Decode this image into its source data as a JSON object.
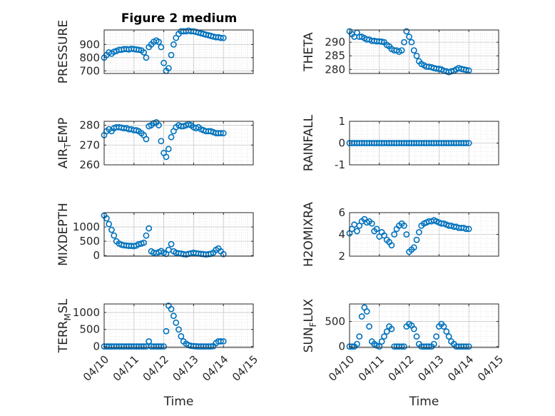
{
  "figure": {
    "title": "Figure 2 medium",
    "marker_color": "#0072bd"
  },
  "chart_data": [
    {
      "type": "scatter",
      "name": "pressure",
      "title": "Figure 2 medium",
      "xlabel": "",
      "ylabel": "PRESSURE",
      "xlim": [
        0,
        5
      ],
      "ylim": [
        680,
        1010
      ],
      "yticks": [
        700,
        800,
        900
      ],
      "yticklabels": [
        "700",
        "800",
        "900"
      ],
      "xticks": [
        0,
        1,
        2,
        3,
        4,
        5
      ],
      "xticklabels": [],
      "grid": true,
      "minor_grid": true,
      "x": [
        0.0,
        0.08,
        0.16,
        0.25,
        0.33,
        0.41,
        0.5,
        0.58,
        0.66,
        0.75,
        0.83,
        0.91,
        1.0,
        1.08,
        1.16,
        1.25,
        1.33,
        1.41,
        1.5,
        1.58,
        1.66,
        1.75,
        1.83,
        1.91,
        2.0,
        2.08,
        2.16,
        2.25,
        2.33,
        2.41,
        2.5,
        2.58,
        2.66,
        2.75,
        2.83,
        2.91,
        3.0,
        3.08,
        3.16,
        3.25,
        3.33,
        3.41,
        3.5,
        3.58,
        3.66,
        3.75,
        3.83,
        3.91,
        4.0
      ],
      "y": [
        800,
        820,
        840,
        830,
        845,
        850,
        860,
        860,
        865,
        865,
        862,
        868,
        865,
        862,
        860,
        855,
        840,
        800,
        880,
        900,
        920,
        930,
        920,
        880,
        760,
        700,
        720,
        820,
        900,
        950,
        980,
        1000,
        1000,
        1000,
        1005,
        1000,
        1000,
        995,
        990,
        985,
        980,
        975,
        970,
        965,
        960,
        955,
        955,
        950,
        950
      ]
    },
    {
      "type": "scatter",
      "name": "theta",
      "xlabel": "",
      "ylabel": "THETA",
      "xlim": [
        0,
        5
      ],
      "ylim": [
        278.5,
        294.5
      ],
      "yticks": [
        280,
        285,
        290
      ],
      "yticklabels": [
        "280",
        "285",
        "290"
      ],
      "xticks": [
        0,
        1,
        2,
        3,
        4,
        5
      ],
      "xticklabels": [],
      "grid": true,
      "minor_grid": true,
      "x": [
        0.0,
        0.08,
        0.16,
        0.25,
        0.33,
        0.41,
        0.5,
        0.58,
        0.66,
        0.75,
        0.83,
        0.91,
        1.0,
        1.08,
        1.16,
        1.25,
        1.33,
        1.41,
        1.5,
        1.58,
        1.66,
        1.75,
        1.83,
        1.91,
        2.0,
        2.08,
        2.16,
        2.25,
        2.33,
        2.41,
        2.5,
        2.58,
        2.66,
        2.75,
        2.83,
        2.91,
        3.0,
        3.08,
        3.16,
        3.25,
        3.33,
        3.41,
        3.5,
        3.58,
        3.66,
        3.75,
        3.83,
        3.91,
        4.0
      ],
      "y": [
        294,
        293,
        292,
        293.5,
        292,
        292,
        291.5,
        291,
        291,
        290.5,
        290.5,
        290.3,
        290.3,
        290.2,
        290,
        289,
        288.5,
        287.5,
        287,
        287,
        286.5,
        287,
        290,
        294,
        292,
        290,
        287,
        285,
        283,
        282,
        281.5,
        281,
        281,
        280.8,
        280.5,
        280.3,
        280.2,
        280,
        279.5,
        279.3,
        279,
        279.3,
        279.5,
        280,
        280.5,
        280.2,
        280,
        279.8,
        279.6
      ]
    },
    {
      "type": "scatter",
      "name": "air-temp",
      "xlabel": "",
      "ylabel": "AIR_TEMP",
      "ylabel_main": "AIR",
      "ylabel_sub": "T",
      "ylabel_rest": "EMP",
      "xlim": [
        0,
        5
      ],
      "ylim": [
        260,
        282
      ],
      "yticks": [
        260,
        270,
        280
      ],
      "yticklabels": [
        "260",
        "270",
        "280"
      ],
      "xticks": [
        0,
        1,
        2,
        3,
        4,
        5
      ],
      "xticklabels": [],
      "grid": true,
      "minor_grid": true,
      "x": [
        0.0,
        0.08,
        0.16,
        0.25,
        0.33,
        0.41,
        0.5,
        0.58,
        0.66,
        0.75,
        0.83,
        0.91,
        1.0,
        1.08,
        1.16,
        1.25,
        1.33,
        1.41,
        1.5,
        1.58,
        1.66,
        1.75,
        1.83,
        1.91,
        2.0,
        2.08,
        2.16,
        2.25,
        2.33,
        2.41,
        2.5,
        2.58,
        2.66,
        2.75,
        2.83,
        2.91,
        3.0,
        3.08,
        3.16,
        3.25,
        3.33,
        3.41,
        3.5,
        3.58,
        3.66,
        3.75,
        3.83,
        3.91,
        4.0
      ],
      "y": [
        275,
        277,
        278,
        277,
        278.5,
        279,
        279,
        278.8,
        278.5,
        278.5,
        278,
        278,
        277.5,
        277.5,
        277,
        276,
        275,
        273,
        279.5,
        280,
        281,
        281.5,
        280,
        272,
        266,
        264,
        268,
        274,
        277,
        279,
        280,
        279.5,
        279.5,
        280,
        280.5,
        280,
        279,
        278.5,
        279,
        278,
        277.5,
        277,
        277,
        277,
        276.5,
        276,
        276,
        276,
        276
      ]
    },
    {
      "type": "scatter",
      "name": "rainfall",
      "xlabel": "",
      "ylabel": "RAINFALL",
      "xlim": [
        0,
        5
      ],
      "ylim": [
        -1,
        1
      ],
      "yticks": [
        -1,
        0,
        1
      ],
      "yticklabels": [
        "-1",
        "0",
        "1"
      ],
      "xticks": [
        0,
        1,
        2,
        3,
        4,
        5
      ],
      "xticklabels": [],
      "grid": true,
      "minor_grid": true,
      "x": [
        0.0,
        0.08,
        0.16,
        0.25,
        0.33,
        0.41,
        0.5,
        0.58,
        0.66,
        0.75,
        0.83,
        0.91,
        1.0,
        1.08,
        1.16,
        1.25,
        1.33,
        1.41,
        1.5,
        1.58,
        1.66,
        1.75,
        1.83,
        1.91,
        2.0,
        2.08,
        2.16,
        2.25,
        2.33,
        2.41,
        2.5,
        2.58,
        2.66,
        2.75,
        2.83,
        2.91,
        3.0,
        3.08,
        3.16,
        3.25,
        3.33,
        3.41,
        3.5,
        3.58,
        3.66,
        3.75,
        3.83,
        3.91,
        4.0
      ],
      "y": [
        0,
        0,
        0,
        0,
        0,
        0,
        0,
        0,
        0,
        0,
        0,
        0,
        0,
        0,
        0,
        0,
        0,
        0,
        0,
        0,
        0,
        0,
        0,
        0,
        0,
        0,
        0,
        0,
        0,
        0,
        0,
        0,
        0,
        0,
        0,
        0,
        0,
        0,
        0,
        0,
        0,
        0,
        0,
        0,
        0,
        0,
        0,
        0,
        0
      ]
    },
    {
      "type": "scatter",
      "name": "mixdepth",
      "xlabel": "",
      "ylabel": "MIXDEPTH",
      "xlim": [
        0,
        5
      ],
      "ylim": [
        -20,
        1500
      ],
      "yticks": [
        0,
        500,
        1000
      ],
      "yticklabels": [
        "0",
        "500",
        "1000"
      ],
      "xticks": [
        0,
        1,
        2,
        3,
        4,
        5
      ],
      "xticklabels": [],
      "grid": true,
      "minor_grid": true,
      "x": [
        0.0,
        0.08,
        0.16,
        0.25,
        0.33,
        0.41,
        0.5,
        0.58,
        0.66,
        0.75,
        0.83,
        0.91,
        1.0,
        1.08,
        1.16,
        1.25,
        1.33,
        1.41,
        1.5,
        1.58,
        1.66,
        1.75,
        1.83,
        1.91,
        2.0,
        2.08,
        2.16,
        2.25,
        2.33,
        2.41,
        2.5,
        2.58,
        2.66,
        2.75,
        2.83,
        2.91,
        3.0,
        3.08,
        3.16,
        3.25,
        3.33,
        3.41,
        3.5,
        3.58,
        3.66,
        3.75,
        3.83,
        3.91,
        4.0
      ],
      "y": [
        1400,
        1300,
        1100,
        900,
        700,
        500,
        420,
        380,
        360,
        350,
        340,
        340,
        330,
        350,
        400,
        420,
        450,
        700,
        950,
        150,
        100,
        80,
        120,
        160,
        100,
        60,
        200,
        400,
        150,
        100,
        80,
        70,
        50,
        40,
        60,
        80,
        100,
        80,
        70,
        60,
        50,
        40,
        50,
        60,
        100,
        200,
        250,
        150,
        50
      ]
    },
    {
      "type": "scatter",
      "name": "h2o-mixratio",
      "xlabel": "",
      "ylabel": "H2OMIXRA",
      "xlim": [
        0,
        5
      ],
      "ylim": [
        2,
        6
      ],
      "yticks": [
        2,
        4,
        6
      ],
      "yticklabels": [
        "2",
        "4",
        "6"
      ],
      "xticks": [
        0,
        1,
        2,
        3,
        4,
        5
      ],
      "xticklabels": [],
      "grid": true,
      "minor_grid": true,
      "x": [
        0.0,
        0.08,
        0.16,
        0.25,
        0.33,
        0.41,
        0.5,
        0.58,
        0.66,
        0.75,
        0.83,
        0.91,
        1.0,
        1.08,
        1.16,
        1.25,
        1.33,
        1.41,
        1.5,
        1.58,
        1.66,
        1.75,
        1.83,
        1.91,
        2.0,
        2.08,
        2.16,
        2.25,
        2.33,
        2.41,
        2.5,
        2.58,
        2.66,
        2.75,
        2.83,
        2.91,
        3.0,
        3.08,
        3.16,
        3.25,
        3.33,
        3.41,
        3.5,
        3.58,
        3.66,
        3.75,
        3.83,
        3.91,
        4.0
      ],
      "y": [
        4.1,
        4.5,
        4.9,
        4.3,
        4.8,
        5.2,
        5.4,
        5.1,
        5.2,
        5.0,
        4.3,
        4.5,
        3.8,
        4.2,
        3.9,
        3.5,
        3.3,
        3.0,
        4.0,
        4.5,
        4.8,
        5.0,
        4.8,
        4.0,
        2.4,
        2.6,
        2.8,
        3.5,
        4.2,
        4.8,
        5.0,
        5.1,
        5.2,
        5.2,
        5.3,
        5.2,
        5.1,
        5.0,
        5.0,
        4.9,
        4.8,
        4.8,
        4.7,
        4.7,
        4.6,
        4.6,
        4.6,
        4.5,
        4.5
      ]
    },
    {
      "type": "scatter",
      "name": "terr-msl",
      "xlabel": "Time",
      "ylabel": "TERR_MSL",
      "ylabel_main": "TERR",
      "ylabel_sub": "M",
      "ylabel_rest": "SL",
      "xlim": [
        0,
        5
      ],
      "ylim": [
        -30,
        1250
      ],
      "yticks": [
        0,
        500,
        1000
      ],
      "yticklabels": [
        "0",
        "500",
        "1000"
      ],
      "xticks": [
        0,
        1,
        2,
        3,
        4,
        5
      ],
      "xticklabels": [
        "04/10",
        "04/11",
        "04/12",
        "04/13",
        "04/14",
        "04/15"
      ],
      "grid": true,
      "minor_grid": true,
      "x": [
        0.0,
        0.08,
        0.16,
        0.25,
        0.33,
        0.41,
        0.5,
        0.58,
        0.66,
        0.75,
        0.83,
        0.91,
        1.0,
        1.08,
        1.16,
        1.25,
        1.33,
        1.41,
        1.5,
        1.58,
        1.66,
        1.75,
        1.83,
        1.91,
        2.0,
        2.08,
        2.16,
        2.25,
        2.33,
        2.41,
        2.5,
        2.58,
        2.66,
        2.75,
        2.83,
        2.91,
        3.0,
        3.08,
        3.16,
        3.25,
        3.33,
        3.41,
        3.5,
        3.58,
        3.66,
        3.75,
        3.83,
        3.91,
        4.0
      ],
      "y": [
        0,
        0,
        0,
        0,
        0,
        0,
        0,
        0,
        0,
        0,
        0,
        0,
        0,
        0,
        0,
        0,
        0,
        0,
        150,
        0,
        0,
        0,
        0,
        0,
        0,
        450,
        1200,
        1100,
        900,
        700,
        500,
        300,
        150,
        80,
        40,
        20,
        10,
        5,
        0,
        0,
        0,
        0,
        0,
        0,
        10,
        100,
        150,
        150,
        150
      ]
    },
    {
      "type": "scatter",
      "name": "sun-flux",
      "xlabel": "Time",
      "ylabel": "SUN_FLUX",
      "ylabel_main": "SUN",
      "ylabel_sub": "F",
      "ylabel_rest": "LUX",
      "xlim": [
        0,
        5
      ],
      "ylim": [
        -20,
        850
      ],
      "yticks": [
        0,
        500
      ],
      "yticklabels": [
        "0",
        "500"
      ],
      "xticks": [
        0,
        1,
        2,
        3,
        4,
        5
      ],
      "xticklabels": [
        "04/10",
        "04/11",
        "04/12",
        "04/13",
        "04/14",
        "04/15"
      ],
      "grid": true,
      "minor_grid": true,
      "x": [
        0.0,
        0.08,
        0.16,
        0.25,
        0.33,
        0.41,
        0.5,
        0.58,
        0.66,
        0.75,
        0.83,
        0.91,
        1.0,
        1.08,
        1.16,
        1.25,
        1.33,
        1.41,
        1.5,
        1.58,
        1.66,
        1.75,
        1.83,
        1.91,
        2.0,
        2.08,
        2.16,
        2.25,
        2.33,
        2.41,
        2.5,
        2.58,
        2.66,
        2.75,
        2.83,
        2.91,
        3.0,
        3.08,
        3.16,
        3.25,
        3.33,
        3.41,
        3.5,
        3.58,
        3.66,
        3.75,
        3.83,
        3.91,
        4.0
      ],
      "y": [
        0,
        0,
        0,
        50,
        200,
        600,
        780,
        700,
        400,
        100,
        50,
        20,
        0,
        100,
        200,
        300,
        400,
        350,
        0,
        0,
        0,
        0,
        0,
        400,
        450,
        420,
        350,
        200,
        50,
        0,
        0,
        0,
        0,
        0,
        50,
        200,
        400,
        450,
        400,
        300,
        200,
        100,
        50,
        0,
        0,
        0,
        0,
        0,
        0
      ]
    }
  ]
}
